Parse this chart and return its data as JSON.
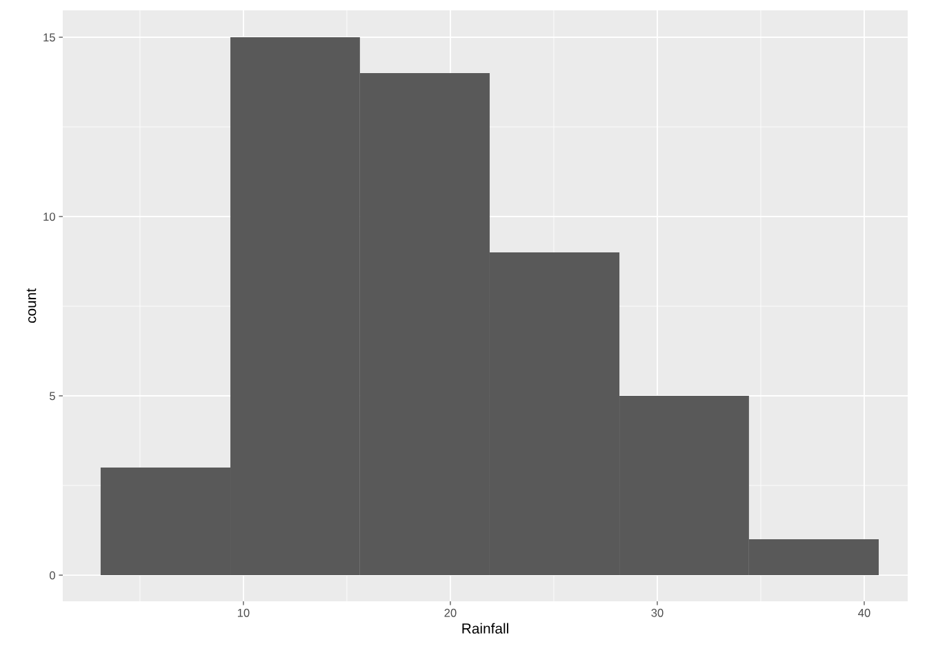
{
  "chart_data": {
    "type": "histogram",
    "xlabel": "Rainfall",
    "ylabel": "count",
    "bins": [
      3.1,
      9.37,
      15.63,
      21.9,
      28.17,
      34.43,
      40.7
    ],
    "values": [
      3,
      15,
      14,
      9,
      5,
      1
    ],
    "color": "#595959",
    "xlim": [
      1.27,
      42.1
    ],
    "ylim": [
      -0.73,
      15.75
    ],
    "xticks": [
      10,
      20,
      30,
      40
    ],
    "yticks": [
      0,
      5,
      10,
      15
    ],
    "grid": true
  }
}
